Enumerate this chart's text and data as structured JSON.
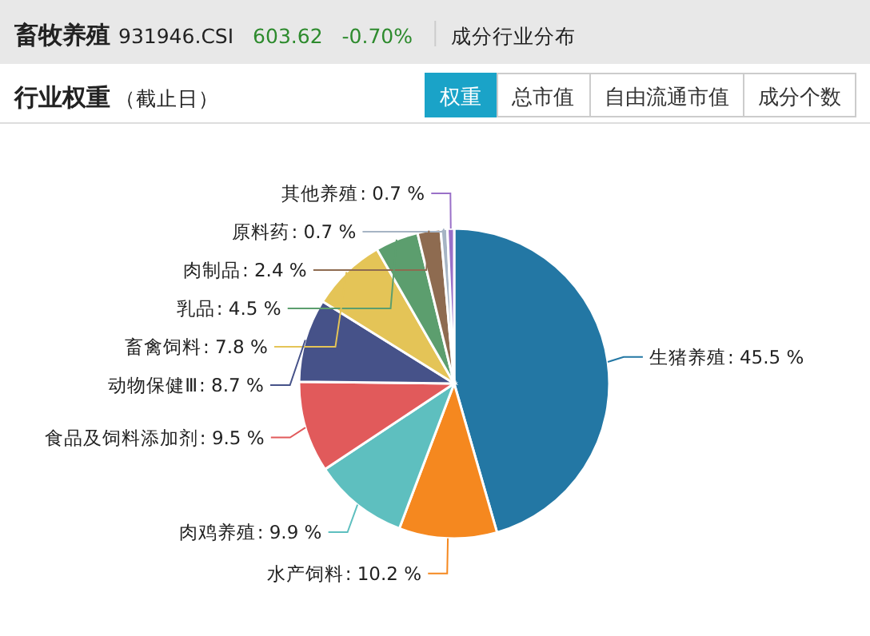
{
  "chart_data": {
    "type": "pie",
    "title": "行业权重（截止日）",
    "annotations": [
      "畜牧养殖",
      "931946.CSI",
      "603.62",
      "-0.70%",
      "成分行业分布",
      "权重",
      "总市值",
      "自由流通市值",
      "成分个数"
    ],
    "categories": [
      "生猪养殖",
      "水产饲料",
      "肉鸡养殖",
      "食品及饲料添加剂",
      "动物保健Ⅲ",
      "畜禽饲料",
      "乳品",
      "肉制品",
      "原料药",
      "其他养殖"
    ],
    "values": [
      45.5,
      10.2,
      9.9,
      9.5,
      8.7,
      7.8,
      4.5,
      2.4,
      0.7,
      0.7
    ],
    "colors": [
      "#2377a4",
      "#f5881f",
      "#5ebfbf",
      "#e15a5b",
      "#465289",
      "#e4c457",
      "#5c9e6e",
      "#8e6b50",
      "#a6b4c4",
      "#9a70c8"
    ],
    "value_labels": [
      ": 45.5 %",
      ": 10.2 %",
      ": 9.9 %",
      ": 9.5 %",
      ": 8.7 %",
      ": 7.8 %",
      ": 4.5 %",
      ": 2.4 %",
      ": 0.7 %",
      ": 0.7 %"
    ]
  }
}
